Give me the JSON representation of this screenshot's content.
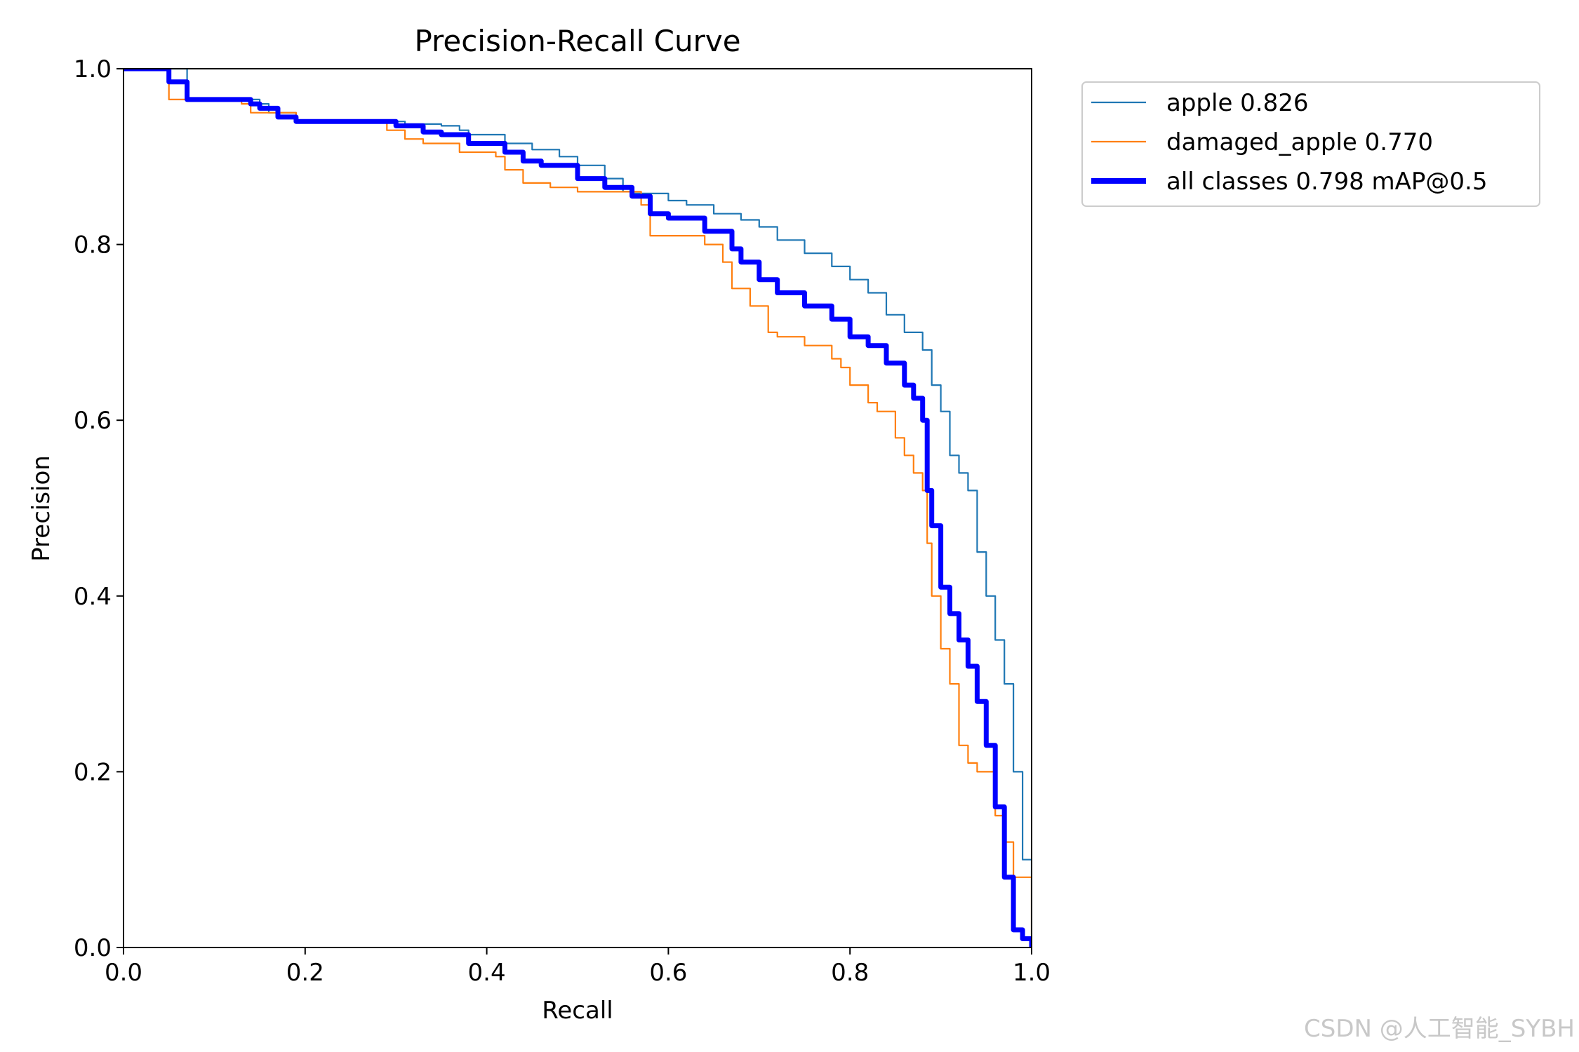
{
  "chart_data": {
    "type": "line",
    "title": "Precision-Recall Curve",
    "xlabel": "Recall",
    "ylabel": "Precision",
    "xlim": [
      0.0,
      1.0
    ],
    "ylim": [
      0.0,
      1.0
    ],
    "xticks": [
      "0.0",
      "0.2",
      "0.4",
      "0.6",
      "0.8",
      "1.0"
    ],
    "yticks": [
      "0.0",
      "0.2",
      "0.4",
      "0.6",
      "0.8",
      "1.0"
    ],
    "grid": false,
    "legend_position": "outside-top-right",
    "series": [
      {
        "name": "apple 0.826",
        "color": "#1f77b4",
        "style": "thin",
        "x": [
          0.0,
          0.06,
          0.07,
          0.07,
          0.15,
          0.16,
          0.19,
          0.3,
          0.31,
          0.35,
          0.37,
          0.38,
          0.42,
          0.45,
          0.48,
          0.5,
          0.53,
          0.55,
          0.56,
          0.6,
          0.62,
          0.65,
          0.68,
          0.7,
          0.72,
          0.75,
          0.78,
          0.8,
          0.82,
          0.84,
          0.86,
          0.88,
          0.89,
          0.9,
          0.91,
          0.92,
          0.93,
          0.94,
          0.95,
          0.96,
          0.97,
          0.98,
          0.99,
          1.0
        ],
        "y": [
          1.0,
          1.0,
          1.0,
          0.965,
          0.96,
          0.95,
          0.94,
          0.94,
          0.937,
          0.935,
          0.93,
          0.925,
          0.915,
          0.908,
          0.9,
          0.89,
          0.875,
          0.86,
          0.858,
          0.85,
          0.845,
          0.835,
          0.828,
          0.82,
          0.805,
          0.79,
          0.775,
          0.76,
          0.745,
          0.72,
          0.7,
          0.68,
          0.64,
          0.61,
          0.56,
          0.54,
          0.52,
          0.45,
          0.4,
          0.35,
          0.3,
          0.2,
          0.1,
          0.0
        ]
      },
      {
        "name": "damaged_apple 0.770",
        "color": "#ff7f0e",
        "style": "thin",
        "x": [
          0.0,
          0.04,
          0.05,
          0.06,
          0.13,
          0.14,
          0.19,
          0.29,
          0.31,
          0.33,
          0.37,
          0.41,
          0.42,
          0.44,
          0.47,
          0.5,
          0.53,
          0.57,
          0.58,
          0.6,
          0.64,
          0.66,
          0.67,
          0.69,
          0.71,
          0.72,
          0.75,
          0.78,
          0.79,
          0.8,
          0.82,
          0.83,
          0.85,
          0.86,
          0.87,
          0.88,
          0.885,
          0.89,
          0.9,
          0.91,
          0.92,
          0.93,
          0.94,
          0.96,
          0.97,
          0.98,
          1.0
        ],
        "y": [
          1.0,
          1.0,
          0.965,
          0.965,
          0.96,
          0.95,
          0.94,
          0.93,
          0.92,
          0.915,
          0.905,
          0.9,
          0.885,
          0.87,
          0.865,
          0.86,
          0.86,
          0.845,
          0.81,
          0.81,
          0.8,
          0.78,
          0.75,
          0.73,
          0.7,
          0.695,
          0.685,
          0.67,
          0.66,
          0.64,
          0.62,
          0.61,
          0.58,
          0.56,
          0.54,
          0.52,
          0.46,
          0.4,
          0.34,
          0.3,
          0.23,
          0.21,
          0.2,
          0.15,
          0.12,
          0.08,
          0.0
        ]
      },
      {
        "name": "all classes 0.798 mAP@0.5",
        "color": "#0000ff",
        "style": "thick",
        "x": [
          0.0,
          0.045,
          0.05,
          0.07,
          0.14,
          0.15,
          0.17,
          0.19,
          0.3,
          0.33,
          0.35,
          0.38,
          0.42,
          0.44,
          0.46,
          0.5,
          0.53,
          0.56,
          0.58,
          0.6,
          0.64,
          0.67,
          0.68,
          0.7,
          0.72,
          0.75,
          0.78,
          0.8,
          0.82,
          0.84,
          0.86,
          0.87,
          0.88,
          0.885,
          0.89,
          0.9,
          0.91,
          0.92,
          0.93,
          0.94,
          0.95,
          0.96,
          0.97,
          0.98,
          0.99,
          1.0
        ],
        "y": [
          1.0,
          1.0,
          0.985,
          0.965,
          0.96,
          0.955,
          0.945,
          0.94,
          0.935,
          0.928,
          0.925,
          0.915,
          0.905,
          0.895,
          0.89,
          0.875,
          0.865,
          0.855,
          0.835,
          0.83,
          0.815,
          0.795,
          0.78,
          0.76,
          0.745,
          0.73,
          0.715,
          0.695,
          0.685,
          0.665,
          0.64,
          0.625,
          0.6,
          0.52,
          0.48,
          0.41,
          0.38,
          0.35,
          0.32,
          0.28,
          0.23,
          0.16,
          0.08,
          0.02,
          0.01,
          0.0
        ]
      }
    ]
  },
  "watermark": "CSDN @人工智能_SYBH"
}
